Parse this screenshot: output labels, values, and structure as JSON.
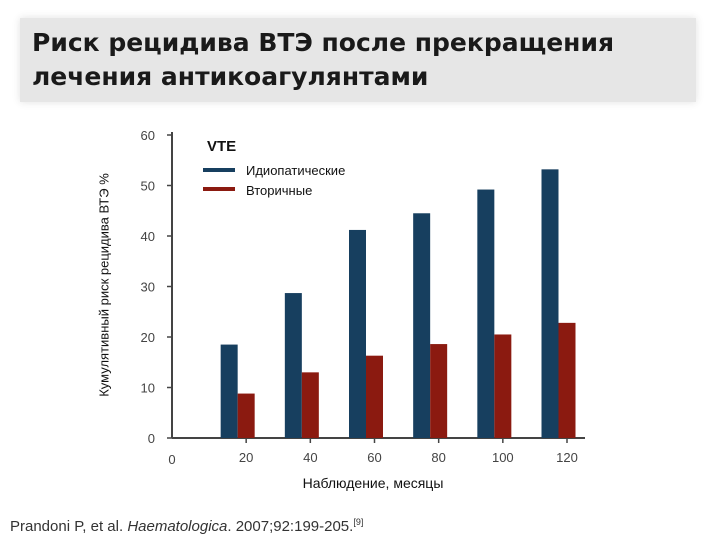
{
  "slide": {
    "title": "Риск рецидива ВТЭ после прекращения лечения антикоагулянтами"
  },
  "citation": {
    "authors": "Prandoni P, et al.",
    "journal": "Haematologica",
    "details": ". 2007;92:199-205.",
    "ref": "[9]"
  },
  "chart_data": {
    "type": "bar",
    "categories": [
      "20",
      "40",
      "60",
      "80",
      "100",
      "120"
    ],
    "x_zero_label": "0",
    "series": [
      {
        "name": "Идиопатические",
        "color": "#173f5f",
        "values": [
          18.5,
          28.7,
          41.2,
          44.5,
          49.2,
          53.2
        ]
      },
      {
        "name": "Вторичные",
        "color": "#8b1a10",
        "values": [
          8.8,
          13.0,
          16.3,
          18.6,
          20.5,
          22.8
        ]
      }
    ],
    "legend_title": "VTE",
    "legend_position": "top-left",
    "xlabel": "Наблюдение, месяцы",
    "ylabel": "Кумулятивный риск рецидива ВТЭ %",
    "ylim": [
      0,
      60
    ],
    "yticks": [
      "0",
      "10",
      "20",
      "30",
      "40",
      "50",
      "60"
    ],
    "grid": false
  }
}
